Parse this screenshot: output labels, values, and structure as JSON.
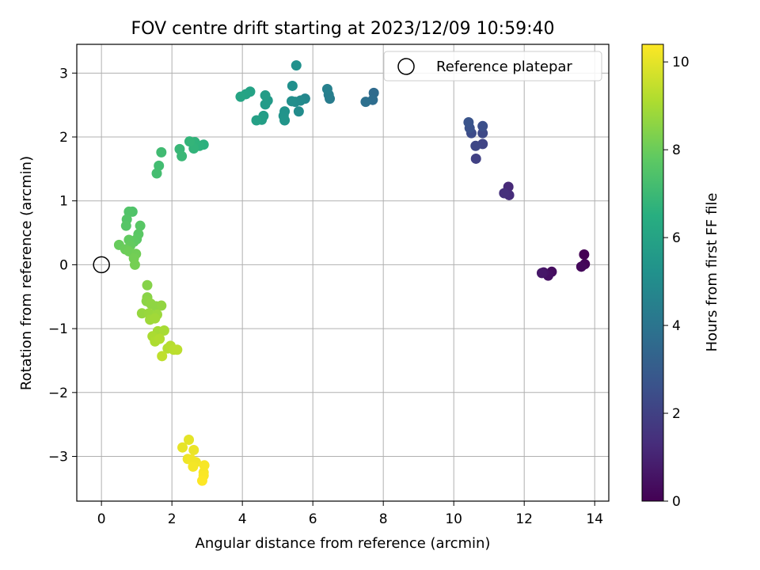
{
  "chart_data": {
    "type": "scatter",
    "title": "FOV centre drift starting at 2023/12/09 10:59:40",
    "xlabel": "Angular distance from reference (arcmin)",
    "ylabel": "Rotation from reference (arcmin)",
    "xlim": [
      -0.7,
      14.4
    ],
    "ylim": [
      -3.7,
      3.45
    ],
    "xticks": [
      0,
      2,
      4,
      6,
      8,
      10,
      12,
      14
    ],
    "yticks": [
      -3,
      -2,
      -1,
      0,
      1,
      2,
      3
    ],
    "grid": true,
    "legend": {
      "placement": "top-right",
      "entries": [
        "Reference platepar"
      ]
    },
    "reference_point": {
      "x": 0,
      "y": 0,
      "label": "Reference platepar"
    },
    "colorbar": {
      "label": "Hours from first FF file",
      "colormap": "viridis",
      "range": [
        0,
        10.4
      ],
      "ticks": [
        0,
        2,
        4,
        6,
        8,
        10
      ]
    },
    "points": [
      {
        "x": 13.7,
        "y": 0.16,
        "c": 0.0
      },
      {
        "x": 13.72,
        "y": 0.01,
        "c": 0.1
      },
      {
        "x": 13.62,
        "y": -0.03,
        "c": 0.2
      },
      {
        "x": 12.78,
        "y": -0.11,
        "c": 0.35
      },
      {
        "x": 12.68,
        "y": -0.17,
        "c": 0.45
      },
      {
        "x": 12.55,
        "y": -0.12,
        "c": 0.55
      },
      {
        "x": 12.5,
        "y": -0.13,
        "c": 0.65
      },
      {
        "x": 11.55,
        "y": 1.22,
        "c": 1.2
      },
      {
        "x": 11.57,
        "y": 1.09,
        "c": 1.3
      },
      {
        "x": 11.43,
        "y": 1.12,
        "c": 1.4
      },
      {
        "x": 10.63,
        "y": 1.66,
        "c": 2.0
      },
      {
        "x": 10.82,
        "y": 1.89,
        "c": 2.1
      },
      {
        "x": 10.62,
        "y": 1.86,
        "c": 2.2
      },
      {
        "x": 10.82,
        "y": 2.06,
        "c": 2.3
      },
      {
        "x": 10.5,
        "y": 2.06,
        "c": 2.4
      },
      {
        "x": 10.82,
        "y": 2.17,
        "c": 2.5
      },
      {
        "x": 10.45,
        "y": 2.14,
        "c": 2.6
      },
      {
        "x": 10.42,
        "y": 2.23,
        "c": 2.7
      },
      {
        "x": 7.73,
        "y": 2.69,
        "c": 3.6
      },
      {
        "x": 7.7,
        "y": 2.58,
        "c": 3.7
      },
      {
        "x": 7.5,
        "y": 2.55,
        "c": 3.8
      },
      {
        "x": 6.48,
        "y": 2.6,
        "c": 4.3
      },
      {
        "x": 6.45,
        "y": 2.66,
        "c": 4.4
      },
      {
        "x": 6.41,
        "y": 2.75,
        "c": 4.5
      },
      {
        "x": 5.78,
        "y": 2.6,
        "c": 4.8
      },
      {
        "x": 5.65,
        "y": 2.57,
        "c": 4.9
      },
      {
        "x": 5.6,
        "y": 2.4,
        "c": 5.0
      },
      {
        "x": 5.5,
        "y": 2.55,
        "c": 5.05
      },
      {
        "x": 5.4,
        "y": 2.56,
        "c": 5.1
      },
      {
        "x": 5.42,
        "y": 2.8,
        "c": 5.15
      },
      {
        "x": 5.53,
        "y": 3.12,
        "c": 5.2
      },
      {
        "x": 5.2,
        "y": 2.4,
        "c": 5.3
      },
      {
        "x": 5.17,
        "y": 2.33,
        "c": 5.35
      },
      {
        "x": 5.2,
        "y": 2.26,
        "c": 5.4
      },
      {
        "x": 4.72,
        "y": 2.57,
        "c": 5.6
      },
      {
        "x": 4.65,
        "y": 2.51,
        "c": 5.65
      },
      {
        "x": 4.65,
        "y": 2.65,
        "c": 5.7
      },
      {
        "x": 4.6,
        "y": 2.33,
        "c": 5.75
      },
      {
        "x": 4.55,
        "y": 2.27,
        "c": 5.8
      },
      {
        "x": 4.4,
        "y": 2.26,
        "c": 5.85
      },
      {
        "x": 4.22,
        "y": 2.71,
        "c": 5.95
      },
      {
        "x": 4.1,
        "y": 2.67,
        "c": 6.0
      },
      {
        "x": 3.95,
        "y": 2.63,
        "c": 6.05
      },
      {
        "x": 2.9,
        "y": 1.88,
        "c": 6.6
      },
      {
        "x": 2.78,
        "y": 1.86,
        "c": 6.65
      },
      {
        "x": 2.65,
        "y": 1.92,
        "c": 6.7
      },
      {
        "x": 2.62,
        "y": 1.82,
        "c": 6.75
      },
      {
        "x": 2.5,
        "y": 1.93,
        "c": 6.8
      },
      {
        "x": 2.22,
        "y": 1.81,
        "c": 6.9
      },
      {
        "x": 2.28,
        "y": 1.7,
        "c": 6.95
      },
      {
        "x": 1.7,
        "y": 1.76,
        "c": 7.1
      },
      {
        "x": 1.63,
        "y": 1.55,
        "c": 7.15
      },
      {
        "x": 1.57,
        "y": 1.43,
        "c": 7.2
      },
      {
        "x": 0.88,
        "y": 0.83,
        "c": 7.45
      },
      {
        "x": 0.78,
        "y": 0.83,
        "c": 7.5
      },
      {
        "x": 0.72,
        "y": 0.71,
        "c": 7.55
      },
      {
        "x": 0.7,
        "y": 0.61,
        "c": 7.6
      },
      {
        "x": 1.1,
        "y": 0.61,
        "c": 7.65
      },
      {
        "x": 1.05,
        "y": 0.48,
        "c": 7.7
      },
      {
        "x": 1.0,
        "y": 0.4,
        "c": 7.75
      },
      {
        "x": 0.92,
        "y": 0.36,
        "c": 7.8
      },
      {
        "x": 0.78,
        "y": 0.39,
        "c": 7.85
      },
      {
        "x": 0.82,
        "y": 0.3,
        "c": 7.9
      },
      {
        "x": 0.5,
        "y": 0.31,
        "c": 7.95
      },
      {
        "x": 0.68,
        "y": 0.24,
        "c": 8.0
      },
      {
        "x": 0.78,
        "y": 0.21,
        "c": 8.05
      },
      {
        "x": 0.98,
        "y": 0.17,
        "c": 8.1
      },
      {
        "x": 0.92,
        "y": 0.1,
        "c": 8.15
      },
      {
        "x": 0.95,
        "y": 0.0,
        "c": 8.2
      },
      {
        "x": 1.3,
        "y": -0.32,
        "c": 8.45
      },
      {
        "x": 1.3,
        "y": -0.51,
        "c": 8.5
      },
      {
        "x": 1.28,
        "y": -0.57,
        "c": 8.55
      },
      {
        "x": 1.4,
        "y": -0.61,
        "c": 8.6
      },
      {
        "x": 1.55,
        "y": -0.65,
        "c": 8.6
      },
      {
        "x": 1.7,
        "y": -0.64,
        "c": 8.65
      },
      {
        "x": 1.15,
        "y": -0.76,
        "c": 8.7
      },
      {
        "x": 1.35,
        "y": -0.76,
        "c": 8.75
      },
      {
        "x": 1.58,
        "y": -0.78,
        "c": 8.8
      },
      {
        "x": 1.38,
        "y": -0.86,
        "c": 8.85
      },
      {
        "x": 1.52,
        "y": -0.84,
        "c": 8.9
      },
      {
        "x": 1.6,
        "y": -1.04,
        "c": 8.95
      },
      {
        "x": 1.78,
        "y": -1.03,
        "c": 9.0
      },
      {
        "x": 1.45,
        "y": -1.12,
        "c": 9.05
      },
      {
        "x": 1.52,
        "y": -1.2,
        "c": 9.1
      },
      {
        "x": 1.65,
        "y": -1.16,
        "c": 9.15
      },
      {
        "x": 1.88,
        "y": -1.31,
        "c": 9.2
      },
      {
        "x": 1.96,
        "y": -1.27,
        "c": 9.25
      },
      {
        "x": 2.05,
        "y": -1.33,
        "c": 9.3
      },
      {
        "x": 2.15,
        "y": -1.33,
        "c": 9.35
      },
      {
        "x": 1.72,
        "y": -1.43,
        "c": 9.4
      },
      {
        "x": 2.48,
        "y": -2.74,
        "c": 10.0
      },
      {
        "x": 2.3,
        "y": -2.86,
        "c": 10.05
      },
      {
        "x": 2.62,
        "y": -2.9,
        "c": 10.1
      },
      {
        "x": 2.45,
        "y": -3.04,
        "c": 10.15
      },
      {
        "x": 2.55,
        "y": -3.05,
        "c": 10.2
      },
      {
        "x": 2.68,
        "y": -3.09,
        "c": 10.2
      },
      {
        "x": 2.6,
        "y": -3.16,
        "c": 10.25
      },
      {
        "x": 2.92,
        "y": -3.14,
        "c": 10.3
      },
      {
        "x": 2.9,
        "y": -3.25,
        "c": 10.3
      },
      {
        "x": 2.9,
        "y": -3.3,
        "c": 10.35
      },
      {
        "x": 2.86,
        "y": -3.38,
        "c": 10.4
      }
    ]
  }
}
